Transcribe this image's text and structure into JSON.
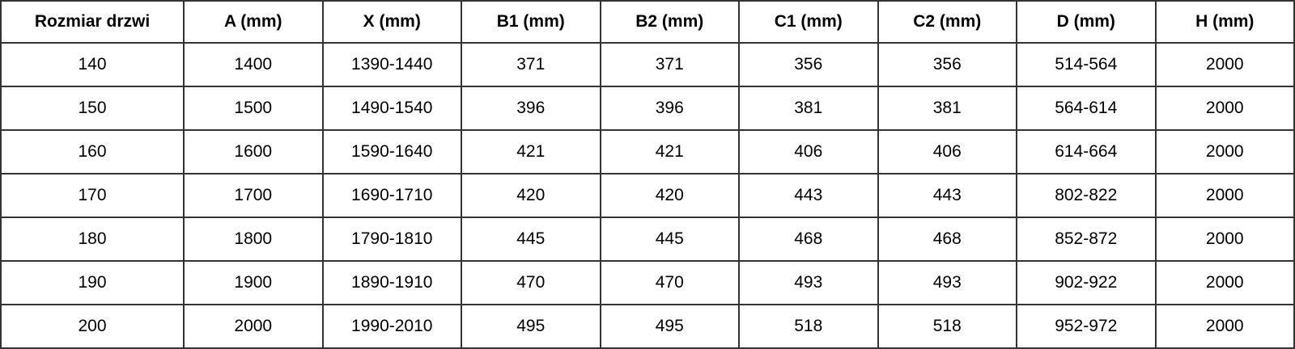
{
  "headers": [
    "Rozmiar drzwi",
    "A (mm)",
    "X (mm)",
    "B1 (mm)",
    "B2 (mm)",
    "C1 (mm)",
    "C2 (mm)",
    "D (mm)",
    "H (mm)"
  ],
  "rows": [
    [
      "140",
      "1400",
      "1390-1440",
      "371",
      "371",
      "356",
      "356",
      "514-564",
      "2000"
    ],
    [
      "150",
      "1500",
      "1490-1540",
      "396",
      "396",
      "381",
      "381",
      "564-614",
      "2000"
    ],
    [
      "160",
      "1600",
      "1590-1640",
      "421",
      "421",
      "406",
      "406",
      "614-664",
      "2000"
    ],
    [
      "170",
      "1700",
      "1690-1710",
      "420",
      "420",
      "443",
      "443",
      "802-822",
      "2000"
    ],
    [
      "180",
      "1800",
      "1790-1810",
      "445",
      "445",
      "468",
      "468",
      "852-872",
      "2000"
    ],
    [
      "190",
      "1900",
      "1890-1910",
      "470",
      "470",
      "493",
      "493",
      "902-922",
      "2000"
    ],
    [
      "200",
      "2000",
      "1990-2010",
      "495",
      "495",
      "518",
      "518",
      "952-972",
      "2000"
    ]
  ]
}
